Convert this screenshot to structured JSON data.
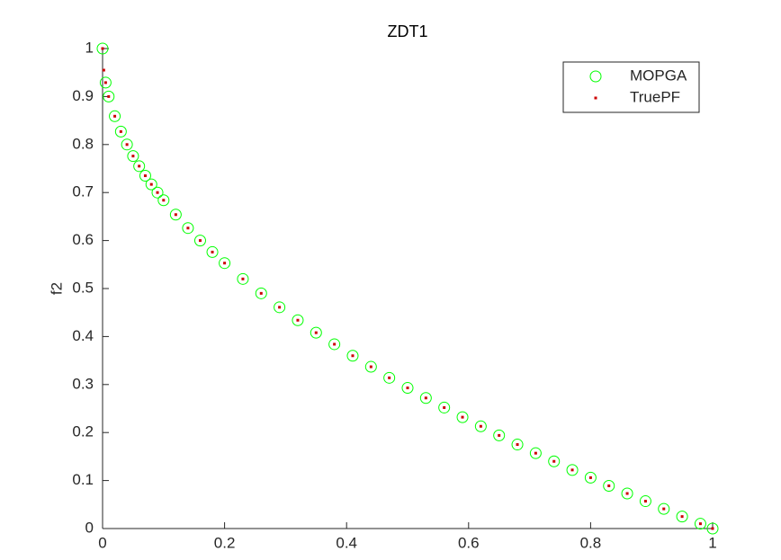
{
  "chart_data": {
    "type": "scatter",
    "title": "ZDT1",
    "y_label": "f2",
    "xlim": [
      0,
      1
    ],
    "ylim": [
      0,
      1
    ],
    "xticks": [
      0,
      0.2,
      0.4,
      0.6,
      0.8,
      1
    ],
    "yticks": [
      0,
      0.1,
      0.2,
      0.3,
      0.4,
      0.5,
      0.6,
      0.7,
      0.8,
      0.9,
      1
    ],
    "legend": "upper right",
    "series": [
      {
        "name": "MOPGA",
        "color": "#00ff00",
        "marker": "circle",
        "x": [
          0,
          0.005,
          0.01,
          0.02,
          0.03,
          0.04,
          0.05,
          0.06,
          0.07,
          0.08,
          0.09,
          0.1,
          0.12,
          0.14,
          0.16,
          0.18,
          0.2,
          0.23,
          0.26,
          0.29,
          0.32,
          0.35,
          0.38,
          0.41,
          0.44,
          0.47,
          0.5,
          0.53,
          0.56,
          0.59,
          0.62,
          0.65,
          0.68,
          0.71,
          0.74,
          0.77,
          0.8,
          0.83,
          0.86,
          0.89,
          0.92,
          0.95,
          0.98,
          1
        ],
        "values": [
          1,
          0.929,
          0.9,
          0.859,
          0.827,
          0.8,
          0.776,
          0.755,
          0.735,
          0.717,
          0.7,
          0.684,
          0.654,
          0.626,
          0.6,
          0.576,
          0.553,
          0.52,
          0.49,
          0.461,
          0.434,
          0.408,
          0.384,
          0.36,
          0.337,
          0.314,
          0.293,
          0.272,
          0.252,
          0.232,
          0.213,
          0.194,
          0.175,
          0.157,
          0.14,
          0.122,
          0.106,
          0.089,
          0.073,
          0.057,
          0.041,
          0.025,
          0.01,
          0
        ]
      },
      {
        "name": "TruePF",
        "color": "#cc0000",
        "marker": "dot",
        "x": [
          0,
          0.002,
          0.005,
          0.01,
          0.02,
          0.03,
          0.04,
          0.05,
          0.06,
          0.07,
          0.08,
          0.09,
          0.1,
          0.12,
          0.14,
          0.16,
          0.18,
          0.2,
          0.23,
          0.26,
          0.29,
          0.32,
          0.35,
          0.38,
          0.41,
          0.44,
          0.47,
          0.5,
          0.53,
          0.56,
          0.59,
          0.62,
          0.65,
          0.68,
          0.71,
          0.74,
          0.77,
          0.8,
          0.83,
          0.86,
          0.89,
          0.92,
          0.95,
          0.98,
          1
        ],
        "values": [
          1,
          0.955,
          0.929,
          0.9,
          0.859,
          0.827,
          0.8,
          0.776,
          0.755,
          0.735,
          0.717,
          0.7,
          0.684,
          0.654,
          0.626,
          0.6,
          0.576,
          0.553,
          0.52,
          0.49,
          0.461,
          0.434,
          0.408,
          0.384,
          0.36,
          0.337,
          0.314,
          0.293,
          0.272,
          0.252,
          0.232,
          0.213,
          0.194,
          0.175,
          0.157,
          0.14,
          0.122,
          0.106,
          0.089,
          0.073,
          0.057,
          0.041,
          0.025,
          0.01,
          0
        ]
      }
    ]
  }
}
